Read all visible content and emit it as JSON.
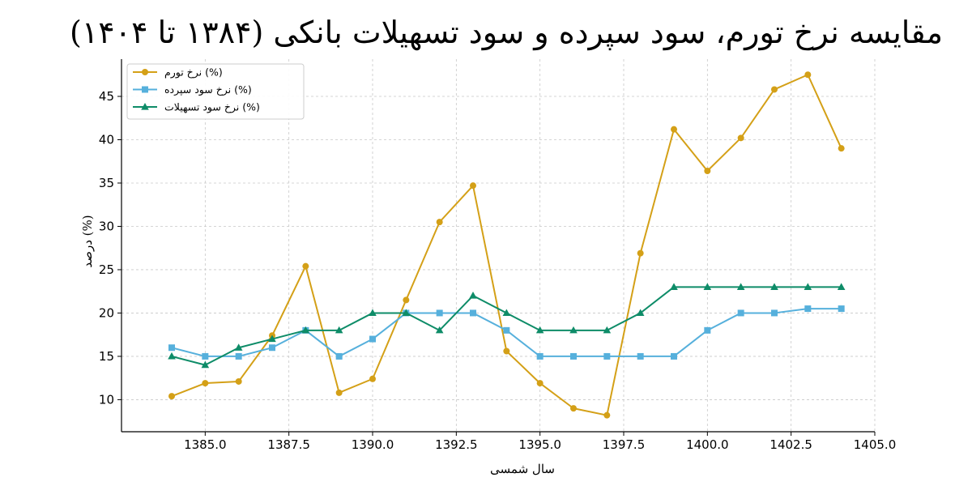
{
  "chart_data": {
    "type": "line",
    "title": "مقایسه نرخ تورم، سود سپرده و سود تسهیلات بانکی (۱۳۸۴ تا ۱۴۰۴)",
    "xlabel": "سال شمسی",
    "ylabel": "درصد (%)",
    "xlim": [
      1382.5,
      1405.0
    ],
    "ylim": [
      6.3,
      49.3
    ],
    "x": [
      1384,
      1385,
      1386,
      1387,
      1388,
      1389,
      1390,
      1391,
      1392,
      1393,
      1394,
      1395,
      1396,
      1397,
      1398,
      1399,
      1400,
      1401,
      1402,
      1403,
      1404
    ],
    "xticks": [
      1385.0,
      1387.5,
      1390.0,
      1392.5,
      1395.0,
      1397.5,
      1400.0,
      1402.5,
      1405.0
    ],
    "xtick_labels": [
      "1385.0",
      "1387.5",
      "1390.0",
      "1392.5",
      "1395.0",
      "1397.5",
      "1400.0",
      "1402.5",
      "1405.0"
    ],
    "yticks": [
      10,
      15,
      20,
      25,
      30,
      35,
      40,
      45
    ],
    "ytick_labels": [
      "10",
      "15",
      "20",
      "25",
      "30",
      "35",
      "40",
      "45"
    ],
    "grid": true,
    "legend_position": "top-left",
    "series": [
      {
        "name": "نرخ تورم (%)",
        "color": "#d4a017",
        "marker": "circle",
        "values": [
          10.4,
          11.9,
          12.1,
          17.4,
          25.4,
          10.8,
          12.4,
          21.5,
          30.5,
          34.7,
          15.6,
          11.9,
          9.0,
          8.2,
          26.9,
          41.2,
          36.4,
          40.2,
          45.8,
          47.5,
          39.0
        ]
      },
      {
        "name": "نرخ سود سپرده (%)",
        "color": "#56b0dc",
        "marker": "square",
        "values": [
          16,
          15,
          15,
          16,
          18,
          15,
          17,
          20,
          20,
          20,
          18,
          15,
          15,
          15,
          15,
          15,
          18,
          20,
          20,
          20.5,
          20.5
        ]
      },
      {
        "name": "نرخ سود تسهیلات (%)",
        "color": "#0e8c68",
        "marker": "triangle",
        "values": [
          15,
          14,
          16,
          17,
          18,
          18,
          20,
          20,
          18,
          22,
          20,
          18,
          18,
          18,
          20,
          23,
          23,
          23,
          23,
          23,
          23
        ]
      }
    ]
  }
}
